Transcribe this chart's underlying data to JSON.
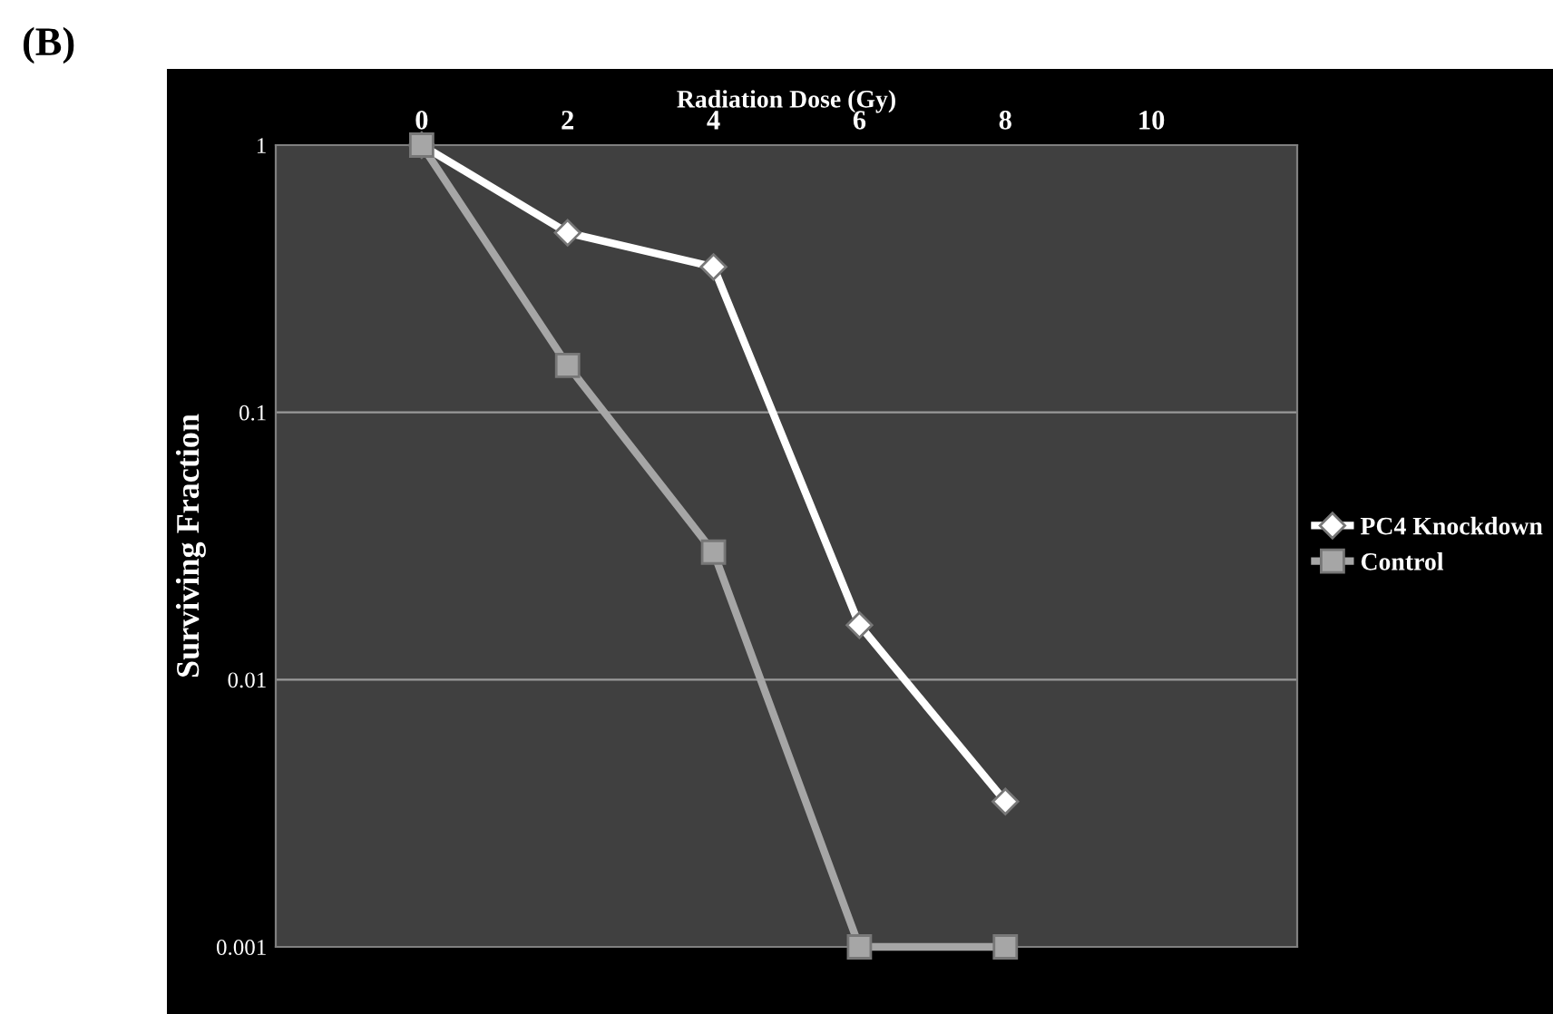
{
  "chart_data": {
    "type": "line",
    "xlabel": "Radiation Dose (Gy)",
    "ylabel": "Surviving Fraction",
    "log": "y",
    "grid": "y",
    "legend": "right",
    "x": [
      0,
      2,
      4,
      6,
      8
    ],
    "xlim": [
      -2,
      12
    ],
    "xticks": [
      0,
      2,
      4,
      6,
      8,
      10
    ],
    "ylim": [
      0.001,
      1
    ],
    "yticks": [
      0.001,
      0.01,
      0.1,
      1
    ],
    "series": [
      {
        "name": "PC4 Knockdown",
        "color": "#ffffff",
        "marker": "diamond",
        "values": [
          1,
          0.47,
          0.35,
          0.016,
          0.0035
        ]
      },
      {
        "name": "Control",
        "color": "#a6a6a6",
        "marker": "square",
        "values": [
          1,
          0.15,
          0.03,
          0.001,
          0.001
        ]
      }
    ],
    "annotations": [
      "(B)"
    ]
  }
}
